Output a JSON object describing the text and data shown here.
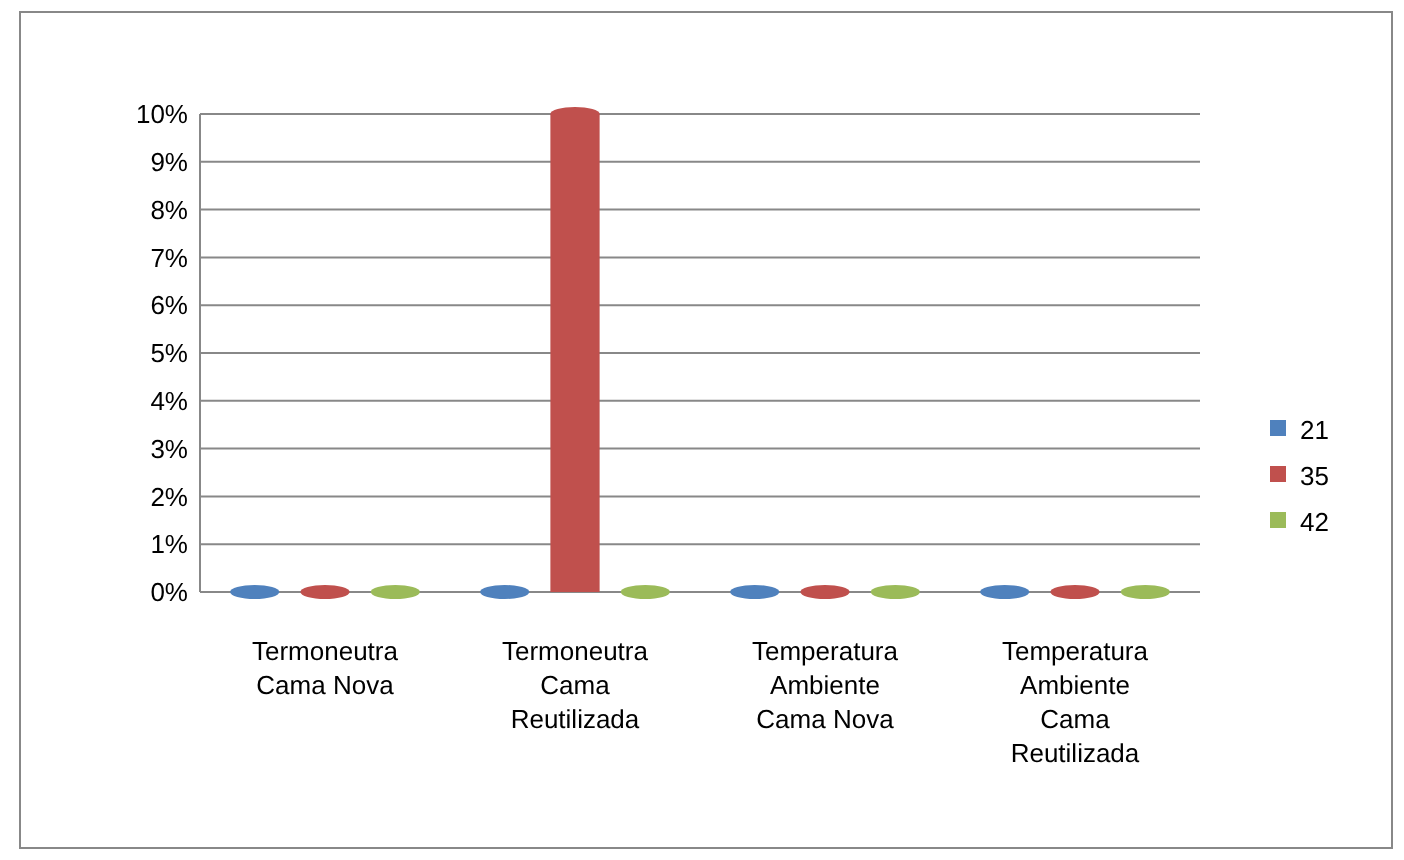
{
  "chart_data": {
    "type": "bar",
    "categories": [
      "Termoneutra Cama Nova",
      "Termoneutra Cama Reutilizada",
      "Temperatura Ambiente Cama Nova",
      "Temperatura Ambiente Cama Reutilizada"
    ],
    "series": [
      {
        "name": "21",
        "color": "#4f81bd",
        "values": [
          0,
          0,
          0,
          0
        ]
      },
      {
        "name": "35",
        "color": "#c0504d",
        "values": [
          0,
          10,
          0,
          0
        ]
      },
      {
        "name": "42",
        "color": "#9bbb59",
        "values": [
          0,
          0,
          0,
          0
        ]
      }
    ],
    "ylim": [
      0,
      10
    ],
    "yticks": [
      {
        "value": 0,
        "label": "0%"
      },
      {
        "value": 1,
        "label": "1%"
      },
      {
        "value": 2,
        "label": "2%"
      },
      {
        "value": 3,
        "label": "3%"
      },
      {
        "value": 4,
        "label": "4%"
      },
      {
        "value": 5,
        "label": "5%"
      },
      {
        "value": 6,
        "label": "6%"
      },
      {
        "value": 7,
        "label": "7%"
      },
      {
        "value": 8,
        "label": "8%"
      },
      {
        "value": 9,
        "label": "9%"
      },
      {
        "value": 10,
        "label": "10%"
      }
    ],
    "grid": "y",
    "legend": "right"
  }
}
